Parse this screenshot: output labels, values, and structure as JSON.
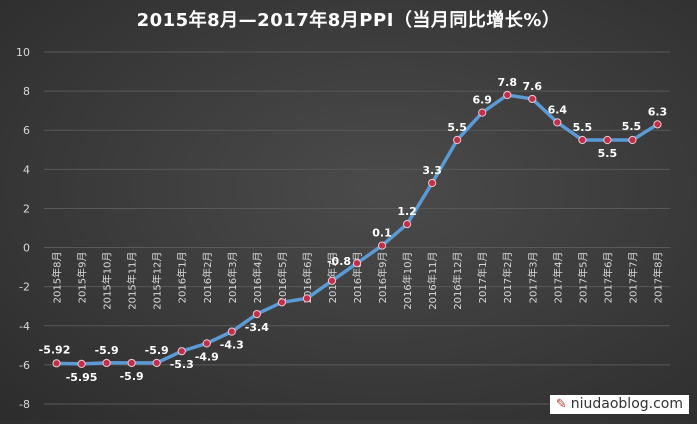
{
  "chart_data": {
    "type": "line",
    "title": "2015年8月—2017年8月PPI（当月同比增长%）",
    "categories": [
      "2015年8月",
      "2015年9月",
      "2015年10月",
      "2015年11月",
      "2015年12月",
      "2016年1月",
      "2016年2月",
      "2016年3月",
      "2016年4月",
      "2016年5月",
      "2016年6月",
      "2016年7月",
      "2016年8月",
      "2016年9月",
      "2016年10月",
      "2016年11月",
      "2016年12月",
      "2017年1月",
      "2017年2月",
      "2017年3月",
      "2017年4月",
      "2017年5月",
      "2017年6月",
      "2017年7月",
      "2017年8月"
    ],
    "values": [
      -5.92,
      -5.95,
      -5.9,
      -5.9,
      -5.9,
      -5.3,
      -4.9,
      -4.3,
      -3.4,
      -2.8,
      -2.6,
      -1.7,
      -0.8,
      0.1,
      1.2,
      3.3,
      5.5,
      6.9,
      7.8,
      7.6,
      6.4,
      5.5,
      5.5,
      5.5,
      6.3
    ],
    "data_labels": [
      "-5.92",
      "-5.95",
      "-5.9",
      "-5.9",
      "-5.9",
      "-5.3",
      "-4.9",
      "-4.3",
      "-3.4",
      "",
      "",
      "",
      "-0.8",
      "0.1",
      "1.2",
      "3.3",
      "5.5",
      "6.9",
      "7.8",
      "7.6",
      "6.4",
      "5.5",
      "5.5",
      "5.5",
      "6.3"
    ],
    "ylim": [
      -8,
      10
    ],
    "yticks": [
      -8,
      -6,
      -4,
      -2,
      0,
      2,
      4,
      6,
      8,
      10
    ],
    "xlabel": "",
    "ylabel": "",
    "grid": true,
    "legend": "none",
    "colors": {
      "line": "#5b9bd5",
      "marker": "#c0304a",
      "grid": "#595959",
      "text": "#ffffff",
      "axis_text": "#d9d9d9"
    }
  },
  "watermark": {
    "icon": "pen-icon",
    "text": "niudaoblog.com"
  }
}
